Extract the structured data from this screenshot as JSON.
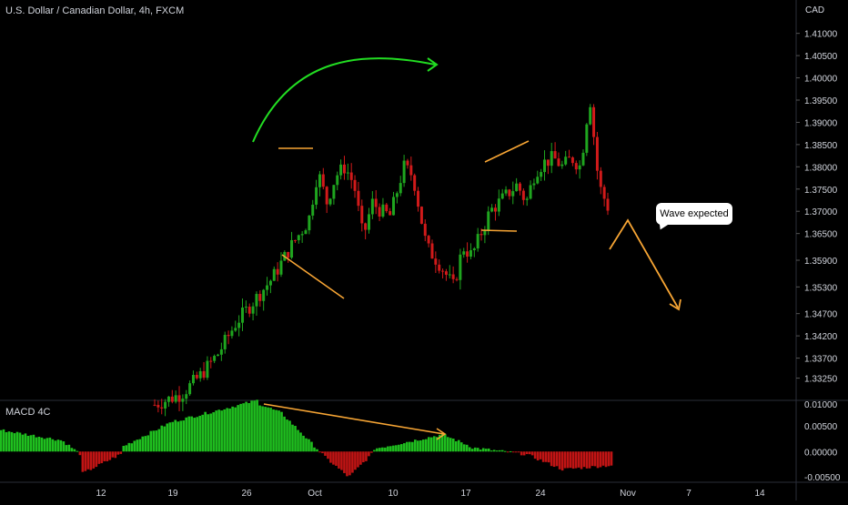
{
  "header": {
    "symbol_title": "U.S. Dollar / Canadian Dollar, 4h, FXCM",
    "currency": "CAD"
  },
  "macd": {
    "title": "MACD 4C"
  },
  "annotation": {
    "callout_text": "Wave expected"
  },
  "colors": {
    "background": "#000000",
    "bull": "#1fa51f",
    "bear": "#d11a1a",
    "hist_pos": "#1fbf1f",
    "hist_neg": "#c01414",
    "orange": "#f7a534",
    "arrow_green": "#22dd22",
    "axis_text": "#d1d4dc"
  },
  "chart_data": [
    {
      "type": "candlestick",
      "name": "USDCAD 4h price",
      "y_ticks": [
        "1.41000",
        "1.40500",
        "1.40000",
        "1.39500",
        "1.39000",
        "1.38500",
        "1.38000",
        "1.37500",
        "1.37000",
        "1.36500",
        "1.35900",
        "1.35300",
        "1.34700",
        "1.34200",
        "1.33700",
        "1.33250"
      ],
      "x_ticks": [
        "12",
        "19",
        "26",
        "Oct",
        "10",
        "17",
        "24",
        "Nov",
        "7",
        "14"
      ],
      "ylim": [
        1.3275,
        1.4175
      ],
      "path": [
        [
          0.0,
          1.3265
        ],
        [
          0.06,
          1.329
        ],
        [
          0.1,
          1.333
        ],
        [
          0.14,
          1.338
        ],
        [
          0.18,
          1.345
        ],
        [
          0.22,
          1.35
        ],
        [
          0.26,
          1.355
        ],
        [
          0.3,
          1.362
        ],
        [
          0.34,
          1.368
        ],
        [
          0.36,
          1.379
        ],
        [
          0.38,
          1.372
        ],
        [
          0.4,
          1.378
        ],
        [
          0.42,
          1.38
        ],
        [
          0.44,
          1.376
        ],
        [
          0.46,
          1.364
        ],
        [
          0.48,
          1.372
        ],
        [
          0.5,
          1.37
        ],
        [
          0.52,
          1.369
        ],
        [
          0.55,
          1.38
        ],
        [
          0.57,
          1.378
        ],
        [
          0.6,
          1.362
        ],
        [
          0.63,
          1.358
        ],
        [
          0.66,
          1.353
        ],
        [
          0.68,
          1.362
        ],
        [
          0.7,
          1.36
        ],
        [
          0.72,
          1.365
        ],
        [
          0.74,
          1.37
        ],
        [
          0.76,
          1.372
        ],
        [
          0.78,
          1.374
        ],
        [
          0.8,
          1.376
        ],
        [
          0.82,
          1.372
        ],
        [
          0.84,
          1.379
        ],
        [
          0.86,
          1.381
        ],
        [
          0.88,
          1.382
        ],
        [
          0.9,
          1.38
        ],
        [
          0.92,
          1.382
        ],
        [
          0.94,
          1.38
        ],
        [
          0.96,
          1.396
        ],
        [
          0.98,
          1.376
        ],
        [
          1.0,
          1.371
        ]
      ]
    },
    {
      "type": "bar",
      "name": "MACD 4C histogram",
      "y_ticks": [
        "0.01000",
        "0.00500",
        "0.00000",
        "-0.00500"
      ],
      "ylim": [
        -0.006,
        0.01
      ]
    }
  ]
}
